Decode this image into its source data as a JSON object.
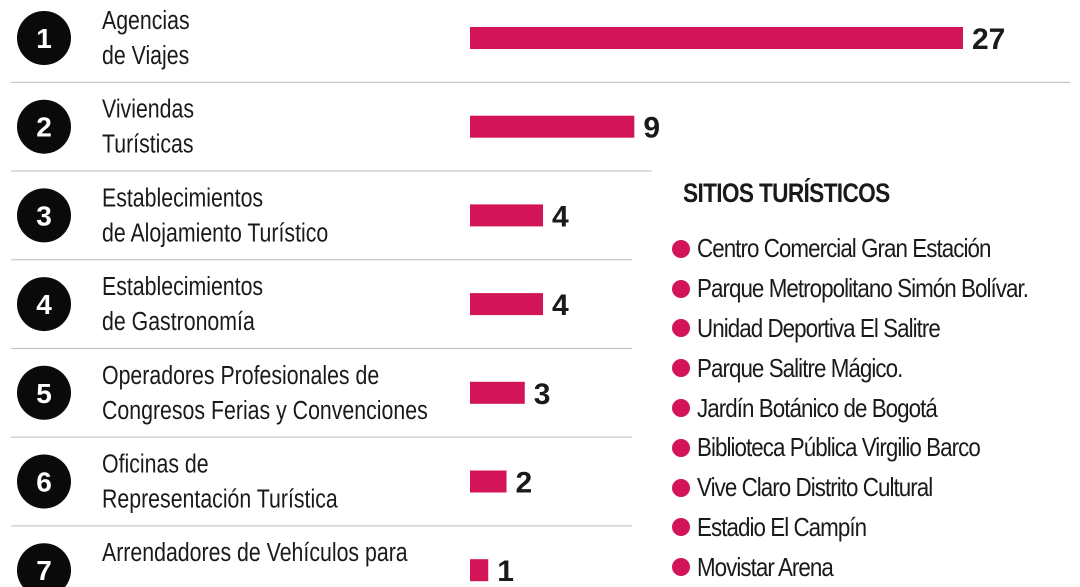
{
  "colors": {
    "bar": "#d41458",
    "badge": "#0a0a0a",
    "badge_text": "#ffffff",
    "divider": "#bdbdbd"
  },
  "chart_data": {
    "type": "bar",
    "orientation": "horizontal",
    "ranks": [
      "1",
      "2",
      "3",
      "4",
      "5",
      "6",
      "7"
    ],
    "categories": [
      [
        "Agencias",
        "de Viajes"
      ],
      [
        "Viviendas",
        "Turísticas"
      ],
      [
        "Establecimientos",
        "de Alojamiento Turístico"
      ],
      [
        "Establecimientos",
        "de Gastronomía"
      ],
      [
        "Operadores Profesionales de",
        "Congresos Ferias y Convenciones"
      ],
      [
        "Oficinas de",
        "Representación Turística"
      ],
      [
        "Arrendadores de Vehículos para",
        ""
      ]
    ],
    "values": [
      27,
      9,
      4,
      4,
      3,
      2,
      1
    ],
    "value_labels": [
      "27",
      "9",
      "4",
      "4",
      "3",
      "2",
      "1"
    ],
    "xlim": [
      0,
      27
    ],
    "grid": false
  },
  "sites": {
    "title": "SITIOS TURÍSTICOS",
    "items": [
      "Centro Comercial Gran Estación",
      "Parque Metropolitano Simón Bolívar.",
      "Unidad Deportiva El Salitre",
      "Parque Salitre Mágico.",
      "Jardín Botánico de Bogotá",
      "Biblioteca Pública Virgilio Barco",
      "Vive Claro Distrito Cultural",
      "Estadio El Campín",
      "Movistar Arena"
    ]
  }
}
